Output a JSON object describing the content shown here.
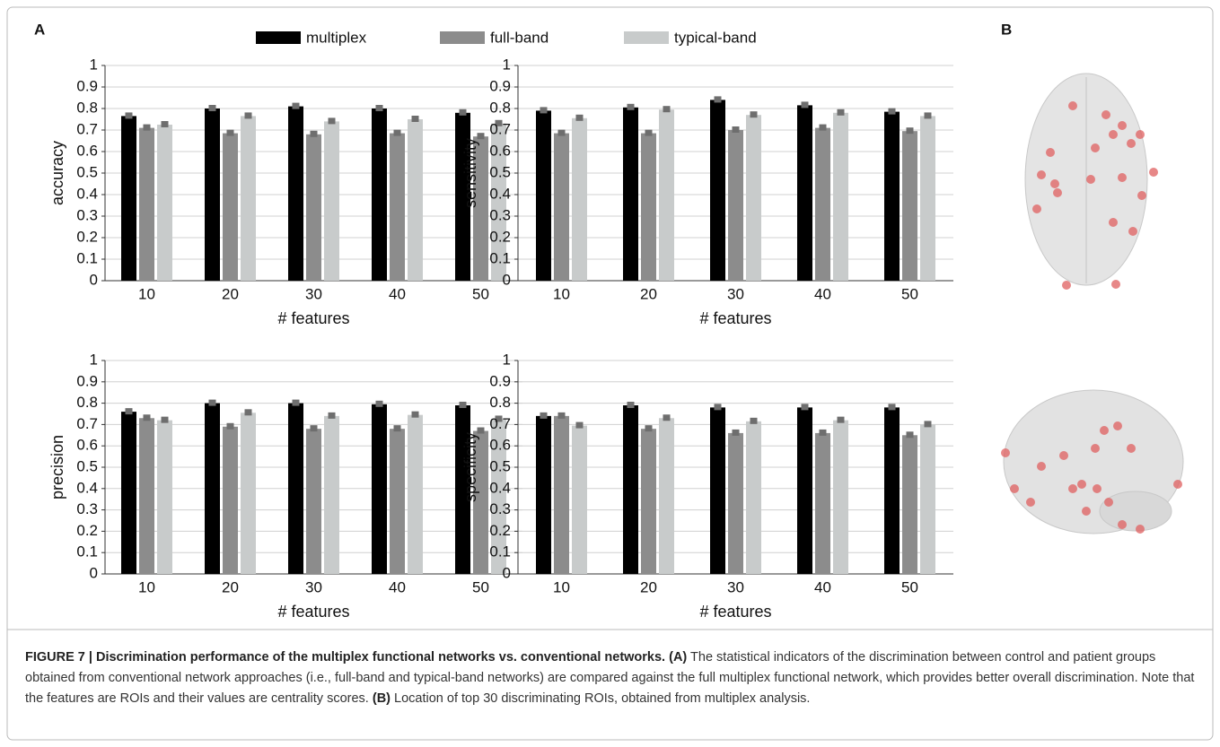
{
  "panel_labels": [
    "A",
    "B"
  ],
  "chart_data": [
    {
      "type": "bar",
      "ylabel": "accuracy",
      "xlabel": "# features",
      "categories": [
        "10",
        "20",
        "30",
        "40",
        "50"
      ],
      "ylim": [
        0,
        1
      ],
      "yticks": [
        0,
        0.1,
        0.2,
        0.3,
        0.4,
        0.5,
        0.6,
        0.7,
        0.8,
        0.9,
        1
      ],
      "grid": true,
      "series": [
        {
          "name": "multiplex",
          "color": "#000000",
          "values": [
            0.765,
            0.8,
            0.81,
            0.8,
            0.78
          ]
        },
        {
          "name": "full-band",
          "color": "#8c8c8c",
          "values": [
            0.71,
            0.685,
            0.68,
            0.685,
            0.67
          ]
        },
        {
          "name": "typical-band",
          "color": "#c8cbcb",
          "values": [
            0.725,
            0.765,
            0.74,
            0.75,
            0.73
          ]
        }
      ]
    },
    {
      "type": "bar",
      "ylabel": "sensitivity",
      "xlabel": "# features",
      "categories": [
        "10",
        "20",
        "30",
        "40",
        "50"
      ],
      "ylim": [
        0,
        1
      ],
      "yticks": [
        0,
        0.1,
        0.2,
        0.3,
        0.4,
        0.5,
        0.6,
        0.7,
        0.8,
        0.9,
        1
      ],
      "grid": true,
      "series": [
        {
          "color": "#000000",
          "values": [
            0.79,
            0.805,
            0.84,
            0.815,
            0.785
          ]
        },
        {
          "color": "#8c8c8c",
          "values": [
            0.685,
            0.685,
            0.7,
            0.71,
            0.695
          ]
        },
        {
          "color": "#c8cbcb",
          "values": [
            0.755,
            0.795,
            0.77,
            0.78,
            0.765
          ]
        }
      ]
    },
    {
      "type": "bar",
      "ylabel": "precision",
      "xlabel": "# features",
      "categories": [
        "10",
        "20",
        "30",
        "40",
        "50"
      ],
      "ylim": [
        0,
        1
      ],
      "yticks": [
        0,
        0.1,
        0.2,
        0.3,
        0.4,
        0.5,
        0.6,
        0.7,
        0.8,
        0.9,
        1
      ],
      "grid": true,
      "series": [
        {
          "color": "#000000",
          "values": [
            0.76,
            0.8,
            0.8,
            0.795,
            0.79
          ]
        },
        {
          "color": "#8c8c8c",
          "values": [
            0.73,
            0.69,
            0.68,
            0.68,
            0.67
          ]
        },
        {
          "color": "#c8cbcb",
          "values": [
            0.72,
            0.755,
            0.74,
            0.745,
            0.725
          ]
        }
      ]
    },
    {
      "type": "bar",
      "ylabel": "specificity",
      "xlabel": "# features",
      "categories": [
        "10",
        "20",
        "30",
        "40",
        "50"
      ],
      "ylim": [
        0,
        1
      ],
      "yticks": [
        0,
        0.1,
        0.2,
        0.3,
        0.4,
        0.5,
        0.6,
        0.7,
        0.8,
        0.9,
        1
      ],
      "grid": true,
      "series": [
        {
          "color": "#000000",
          "values": [
            0.74,
            0.79,
            0.78,
            0.78,
            0.78
          ]
        },
        {
          "color": "#8c8c8c",
          "values": [
            0.74,
            0.68,
            0.66,
            0.66,
            0.65
          ]
        },
        {
          "color": "#c8cbcb",
          "values": [
            0.695,
            0.73,
            0.715,
            0.72,
            0.7
          ]
        }
      ]
    }
  ],
  "caption": {
    "title": "FIGURE 7 | Discrimination performance of the multiplex functional networks vs. conventional networks.",
    "a_label": "(A)",
    "a_text": "The statistical indicators of the discrimination between control and patient groups obtained from conventional network approaches (i.e., full-band and typical-band networks) are compared against the full multiplex functional network, which provides better overall discrimination. Note that the features are ROIs and their values are centrality scores.",
    "b_label": "(B)",
    "b_text": "Location of top 30 discriminating ROIs, obtained from multiplex analysis."
  }
}
